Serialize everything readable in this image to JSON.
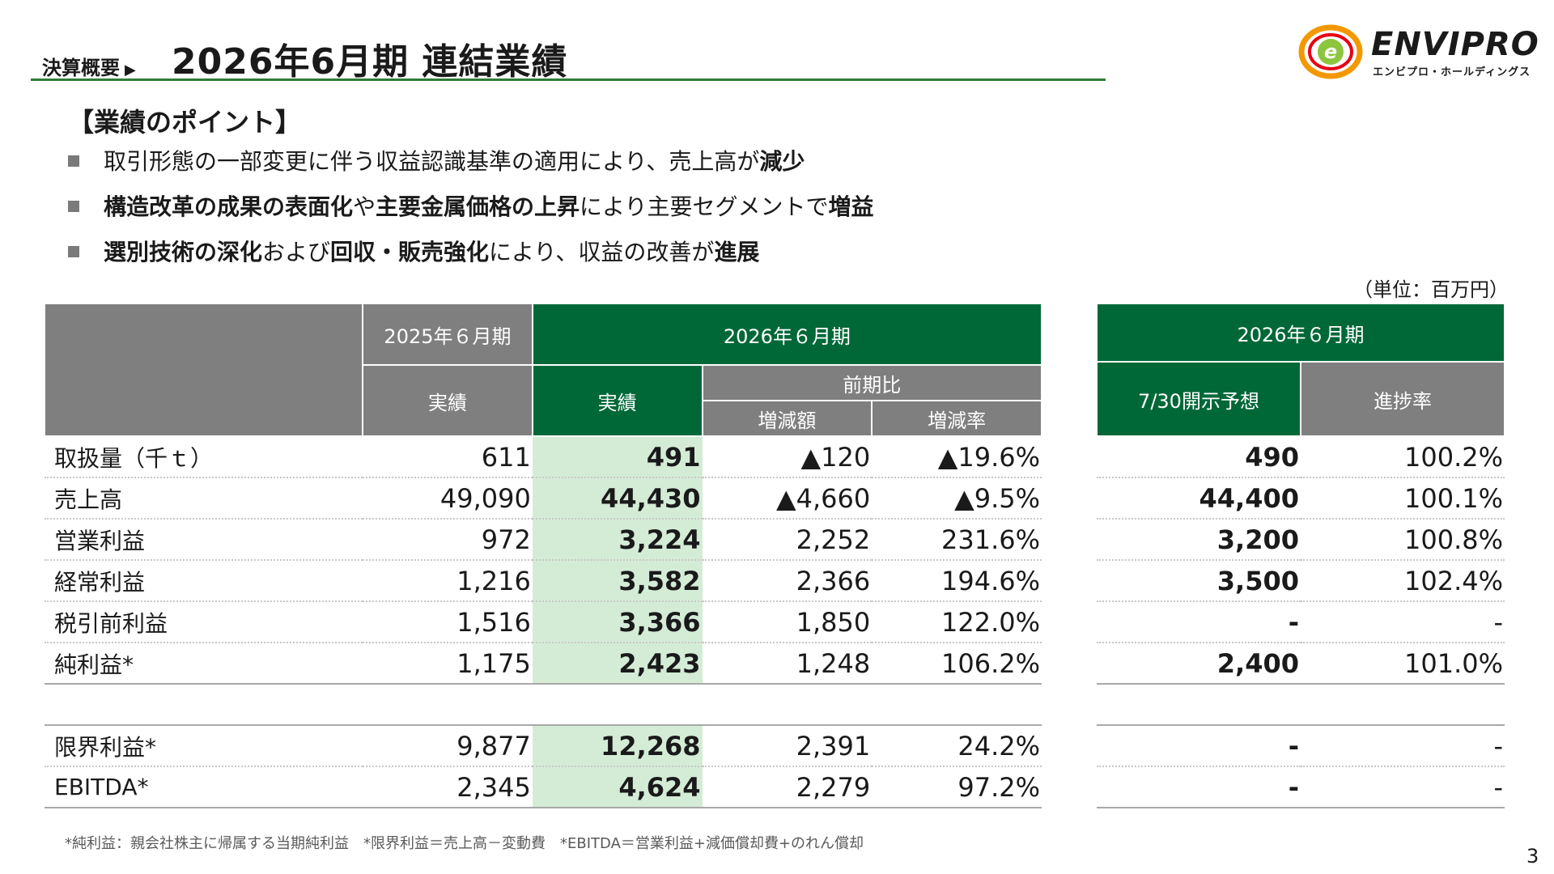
{
  "header": {
    "breadcrumb": "決算概要",
    "breadcrumb_arrow": "▶",
    "title": "2026年6月期 連結業績"
  },
  "logo": {
    "name": "ENVIPRO",
    "subtitle": "エンビプロ・ホールディングス",
    "mark_color_1": "#f39800",
    "mark_color_2": "#e60012",
    "mark_color_3": "#8cc63f"
  },
  "points": {
    "heading": "【業績のポイント】",
    "items": [
      {
        "parts": [
          {
            "text": "取引形態の一部変更に伴う収益認識基準の適用により、売上高が",
            "bold": false
          },
          {
            "text": "減少",
            "bold": true
          }
        ]
      },
      {
        "parts": [
          {
            "text": "構造改革の成果の表面化",
            "bold": true
          },
          {
            "text": "や",
            "bold": false
          },
          {
            "text": "主要金属価格の上昇",
            "bold": true
          },
          {
            "text": "により主要セグメントで",
            "bold": false
          },
          {
            "text": "増益",
            "bold": true
          }
        ]
      },
      {
        "parts": [
          {
            "text": "選別技術の深化",
            "bold": true
          },
          {
            "text": "および",
            "bold": false
          },
          {
            "text": "回収・販売強化",
            "bold": true
          },
          {
            "text": "により、収益の改善が",
            "bold": false
          },
          {
            "text": "進展",
            "bold": true
          }
        ]
      }
    ]
  },
  "unit": "（単位：百万円）",
  "table": {
    "col_2025": "2025年６月期",
    "col_2026": "2026年６月期",
    "actual": "実績",
    "yoy": "前期比",
    "change_amount": "増減額",
    "change_rate": "増減率",
    "rows": [
      {
        "label": "取扱量（千ｔ）",
        "prev": "611",
        "curr": "491",
        "diff": "▲120",
        "rate": "▲19.6%"
      },
      {
        "label": "売上高",
        "prev": "49,090",
        "curr": "44,430",
        "diff": "▲4,660",
        "rate": "▲9.5%"
      },
      {
        "label": "営業利益",
        "prev": "972",
        "curr": "3,224",
        "diff": "2,252",
        "rate": "231.6%"
      },
      {
        "label": "経常利益",
        "prev": "1,216",
        "curr": "3,582",
        "diff": "2,366",
        "rate": "194.6%"
      },
      {
        "label": "税引前利益",
        "prev": "1,516",
        "curr": "3,366",
        "diff": "1,850",
        "rate": "122.0%"
      },
      {
        "label": "純利益*",
        "prev": "1,175",
        "curr": "2,423",
        "diff": "1,248",
        "rate": "106.2%"
      }
    ],
    "rows2": [
      {
        "label": "限界利益*",
        "prev": "9,877",
        "curr": "12,268",
        "diff": "2,391",
        "rate": "24.2%"
      },
      {
        "label": "EBITDA*",
        "prev": "2,345",
        "curr": "4,624",
        "diff": "2,279",
        "rate": "97.2%"
      }
    ]
  },
  "side_table": {
    "header": "2026年６月期",
    "forecast": "7/30開示予想",
    "progress": "進捗率",
    "rows": [
      {
        "forecast": "490",
        "progress": "100.2%"
      },
      {
        "forecast": "44,400",
        "progress": "100.1%"
      },
      {
        "forecast": "3,200",
        "progress": "100.8%"
      },
      {
        "forecast": "3,500",
        "progress": "102.4%"
      },
      {
        "forecast": "-",
        "progress": "-"
      },
      {
        "forecast": "2,400",
        "progress": "101.0%"
      }
    ],
    "rows2": [
      {
        "forecast": "-",
        "progress": "-"
      },
      {
        "forecast": "-",
        "progress": "-"
      }
    ]
  },
  "footnote": "*純利益：親会社株主に帰属する当期純利益　*限界利益＝売上高－変動費　*EBITDA＝営業利益+減価償却費+のれん償却",
  "page_number": "3"
}
